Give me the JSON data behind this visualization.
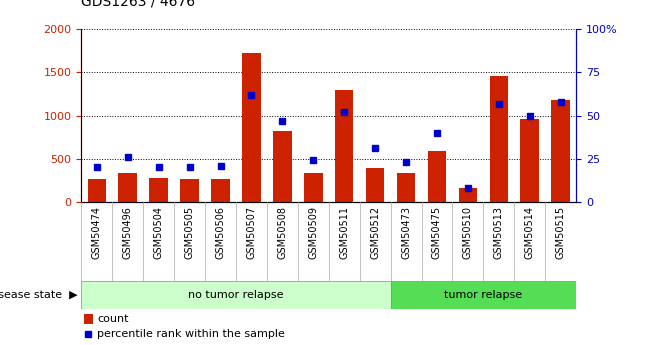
{
  "title": "GDS1263 / 4676",
  "samples": [
    "GSM50474",
    "GSM50496",
    "GSM50504",
    "GSM50505",
    "GSM50506",
    "GSM50507",
    "GSM50508",
    "GSM50509",
    "GSM50511",
    "GSM50512",
    "GSM50473",
    "GSM50475",
    "GSM50510",
    "GSM50513",
    "GSM50514",
    "GSM50515"
  ],
  "count": [
    270,
    340,
    280,
    265,
    270,
    1720,
    820,
    340,
    1300,
    390,
    335,
    590,
    155,
    1460,
    960,
    1180
  ],
  "percentile": [
    20,
    26,
    20,
    20,
    21,
    62,
    47,
    24,
    52,
    31,
    23,
    40,
    8,
    57,
    50,
    58
  ],
  "no_tumor_count": 10,
  "tumor_count": 6,
  "ylim_left": [
    0,
    2000
  ],
  "ylim_right": [
    0,
    100
  ],
  "yticks_left": [
    0,
    500,
    1000,
    1500,
    2000
  ],
  "yticks_right": [
    0,
    25,
    50,
    75,
    100
  ],
  "bar_color": "#cc2200",
  "dot_color": "#0000cc",
  "bg_color_no_tumor": "#ccffcc",
  "bg_color_tumor": "#55dd55",
  "label_bg_color": "#cccccc",
  "legend_count_label": "count",
  "legend_pct_label": "percentile rank within the sample",
  "disease_state_label": "disease state",
  "no_tumor_label": "no tumor relapse",
  "tumor_label": "tumor relapse",
  "title_fontsize": 10,
  "tick_fontsize": 8,
  "label_fontsize": 8
}
